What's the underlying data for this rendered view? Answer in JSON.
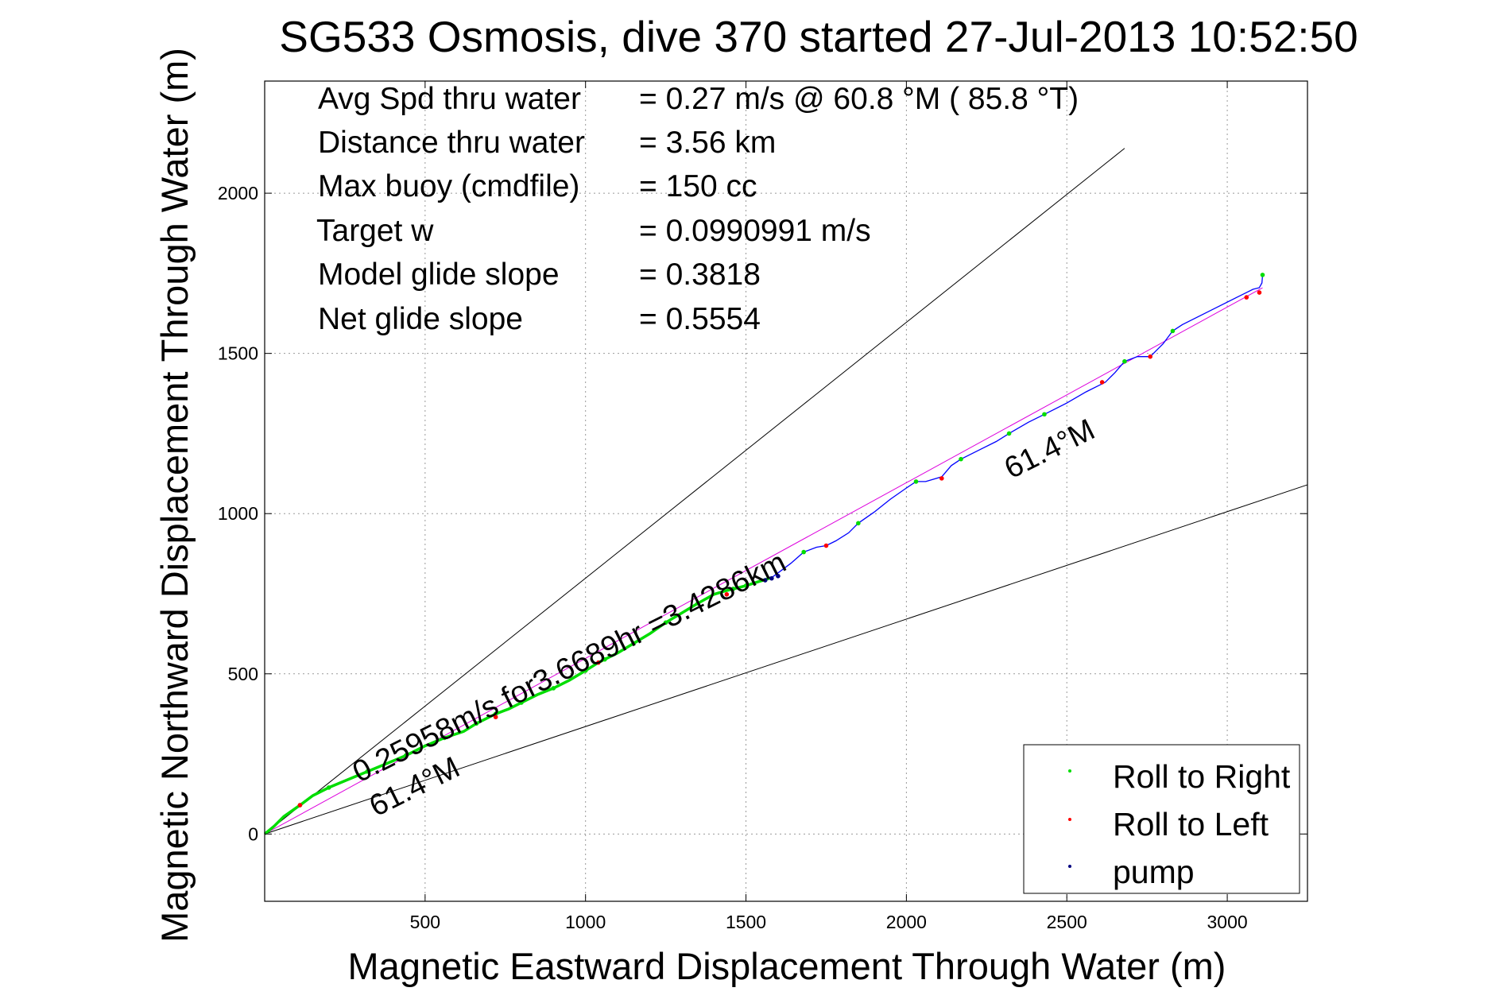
{
  "chart_data": {
    "type": "line",
    "title": "SG533 Osmosis, dive 370 started 27-Jul-2013 10:52:50",
    "xlabel": "Magnetic Eastward Displacement Through Water (m)",
    "ylabel": "Magnetic Northward Displacement Through Water (m)",
    "xlim": [
      0,
      3250
    ],
    "ylim": [
      -210,
      2350
    ],
    "xticks": [
      500,
      1000,
      1500,
      2000,
      2500,
      3000
    ],
    "yticks": [
      0,
      500,
      1000,
      1500,
      2000
    ],
    "xtick_labels": [
      "500",
      "1000",
      "1500",
      "2000",
      "2500",
      "3000"
    ],
    "ytick_labels": [
      "0",
      "500",
      "1000",
      "1500",
      "2000"
    ],
    "grid": true,
    "legend_position": "bottom-right",
    "stats": [
      {
        "label": "Avg Spd thru water",
        "value": "=  0.27 m/s @  60.8 °M ( 85.8 °T)"
      },
      {
        "label": "Distance thru water",
        "value": "=  3.56 km"
      },
      {
        "label": "Max buoy (cmdfile)",
        "value": "= 150 cc"
      },
      {
        "label": "Target w",
        "value": "= 0.0990991 m/s"
      },
      {
        "label": "Model glide slope",
        "value": "= 0.3818"
      },
      {
        "label": "Net glide slope",
        "value": "= 0.5554"
      }
    ],
    "annotations": {
      "speed_text": "0.25958m/s for3.6689hr =3.4286km",
      "heading_lower": "61.4°M",
      "heading_upper": "61.4°M"
    },
    "reference_lines": [
      {
        "name": "upper-bound",
        "x": [
          0,
          2680
        ],
        "y": [
          0,
          2140
        ]
      },
      {
        "name": "lower-bound",
        "x": [
          0,
          3250
        ],
        "y": [
          0,
          1090
        ]
      },
      {
        "name": "heading",
        "x": [
          0,
          3110
        ],
        "y": [
          0,
          1705
        ]
      }
    ],
    "series": [
      {
        "name": "track",
        "x": [
          0,
          30,
          60,
          110,
          150,
          200,
          260,
          320,
          380,
          440,
          500,
          560,
          620,
          660,
          700,
          720,
          760,
          800,
          850,
          900,
          950,
          1000,
          1040,
          1060,
          1100,
          1150,
          1200,
          1250,
          1300,
          1350,
          1400,
          1440,
          1460,
          1500,
          1540,
          1580,
          1600,
          1640,
          1680,
          1720,
          1750,
          1780,
          1820,
          1850,
          1900,
          1950,
          2000,
          2030,
          2060,
          2110,
          2140,
          2170,
          2230,
          2280,
          2320,
          2380,
          2430,
          2500,
          2560,
          2620,
          2650,
          2680,
          2720,
          2760,
          2780,
          2800,
          2830,
          2860,
          2920,
          2980,
          3030,
          3060,
          3080,
          3100,
          3108,
          3110
        ],
        "y": [
          0,
          25,
          55,
          90,
          120,
          145,
          170,
          195,
          220,
          245,
          275,
          300,
          320,
          345,
          365,
          375,
          390,
          410,
          435,
          455,
          480,
          510,
          535,
          545,
          565,
          595,
          625,
          660,
          690,
          720,
          748,
          760,
          765,
          775,
          788,
          800,
          815,
          845,
          880,
          895,
          900,
          915,
          940,
          970,
          1005,
          1045,
          1080,
          1100,
          1100,
          1115,
          1150,
          1170,
          1200,
          1225,
          1250,
          1285,
          1310,
          1345,
          1380,
          1410,
          1440,
          1475,
          1490,
          1490,
          1510,
          1530,
          1570,
          1590,
          1620,
          1650,
          1675,
          1690,
          1700,
          1705,
          1720,
          1745
        ]
      }
    ],
    "marker_series": [
      {
        "name": "Roll to Right",
        "color": "#00dd00",
        "x": [
          110,
          200,
          320,
          440,
          560,
          660,
          720,
          800,
          900,
          1000,
          1060,
          1150,
          1250,
          1350,
          1460,
          1500,
          1680,
          1850,
          2030,
          2170,
          2320,
          2430,
          2680,
          2830,
          3110
        ],
        "y": [
          90,
          145,
          195,
          245,
          300,
          345,
          375,
          410,
          455,
          510,
          545,
          595,
          660,
          720,
          765,
          775,
          880,
          970,
          1100,
          1170,
          1250,
          1310,
          1475,
          1570,
          1745
        ]
      },
      {
        "name": "Roll to Left",
        "color": "#ff0000",
        "x": [
          110,
          720,
          1040,
          1440,
          1750,
          2110,
          2610,
          2760,
          3060,
          3100
        ],
        "y": [
          90,
          365,
          535,
          748,
          900,
          1110,
          1410,
          1490,
          1675,
          1690
        ]
      },
      {
        "name": "pump",
        "color": "#000080",
        "x": [
          1560,
          1580,
          1600
        ],
        "y": [
          792,
          798,
          805
        ]
      }
    ],
    "colors": {
      "track": "#0000ff",
      "track_green": "#00dd00",
      "heading_line": "#dd00dd",
      "reference": "#000000",
      "grid": "#999999"
    }
  }
}
